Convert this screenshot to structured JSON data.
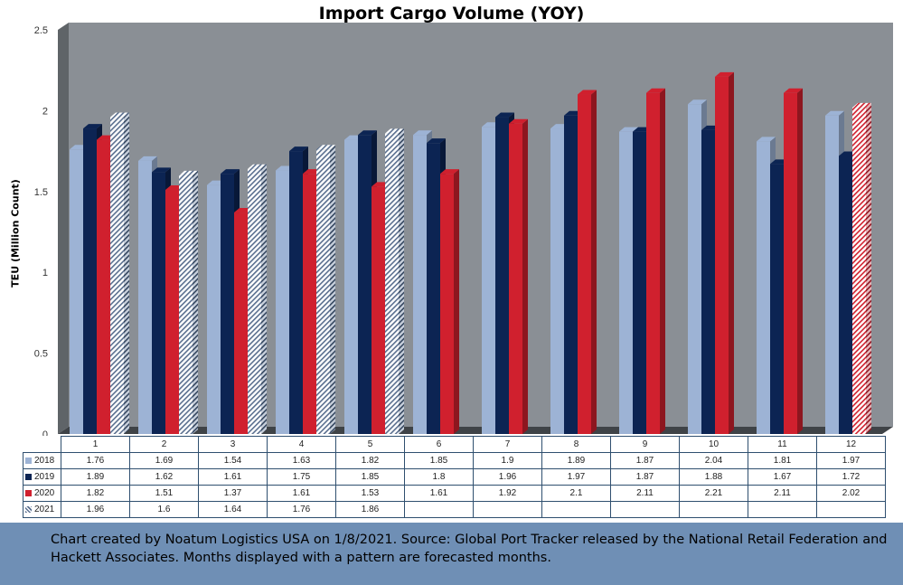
{
  "chart_data": {
    "type": "bar",
    "title": "Import Cargo Volume (YOY)",
    "ylabel": "TEU (Million Count)",
    "xlabel": "",
    "ylim": [
      0,
      2.5
    ],
    "yticks": [
      "0",
      "0.5",
      "1",
      "1.5",
      "2",
      "2.5"
    ],
    "categories": [
      "1",
      "2",
      "3",
      "4",
      "5",
      "6",
      "7",
      "8",
      "9",
      "10",
      "11",
      "12"
    ],
    "series": [
      {
        "name": "2018",
        "color": "#9db3d5",
        "values": [
          1.76,
          1.69,
          1.54,
          1.63,
          1.82,
          1.85,
          1.9,
          1.89,
          1.87,
          2.04,
          1.81,
          1.97
        ]
      },
      {
        "name": "2019",
        "color": "#0c2453",
        "values": [
          1.89,
          1.62,
          1.61,
          1.75,
          1.85,
          1.8,
          1.96,
          1.97,
          1.87,
          1.88,
          1.67,
          1.72
        ]
      },
      {
        "name": "2020",
        "color": "#d0202e",
        "values": [
          1.82,
          1.51,
          1.37,
          1.61,
          1.53,
          1.61,
          1.92,
          2.1,
          2.11,
          2.21,
          2.11,
          2.02
        ],
        "forecast_months": [
          "12"
        ]
      },
      {
        "name": "2021",
        "color": "#5a6f8f",
        "values": [
          1.96,
          1.6,
          1.64,
          1.76,
          1.86,
          null,
          null,
          null,
          null,
          null,
          null,
          null
        ],
        "forecast": true
      }
    ],
    "table": {
      "rows": [
        {
          "label": "2018",
          "cells": [
            "1.76",
            "1.69",
            "1.54",
            "1.63",
            "1.82",
            "1.85",
            "1.9",
            "1.89",
            "1.87",
            "2.04",
            "1.81",
            "1.97"
          ]
        },
        {
          "label": "2019",
          "cells": [
            "1.89",
            "1.62",
            "1.61",
            "1.75",
            "1.85",
            "1.8",
            "1.96",
            "1.97",
            "1.87",
            "1.88",
            "1.67",
            "1.72"
          ]
        },
        {
          "label": "2020",
          "cells": [
            "1.82",
            "1.51",
            "1.37",
            "1.61",
            "1.53",
            "1.61",
            "1.92",
            "2.1",
            "2.11",
            "2.21",
            "2.11",
            "2.02"
          ]
        },
        {
          "label": "2021",
          "cells": [
            "1.96",
            "1.6",
            "1.64",
            "1.76",
            "1.86",
            "",
            "",
            "",
            "",
            "",
            "",
            ""
          ]
        }
      ]
    },
    "grid": false,
    "legend": "data-table",
    "plot_background": "#8a8f95"
  },
  "footer": {
    "text": "Chart created by Noatum Logistics USA on 1/8/2021. Source: Global Port Tracker released by the National Retail Federation and Hackett Associates. Months displayed with a pattern are forecasted months."
  }
}
